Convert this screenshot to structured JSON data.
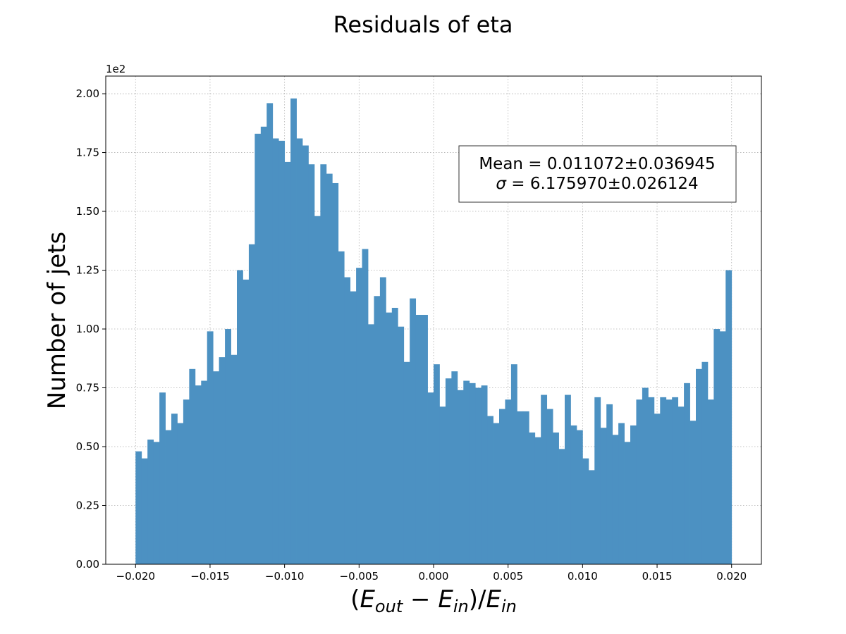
{
  "chart_data": {
    "type": "bar",
    "title": "Residuals of eta",
    "xlabel": "(E_out − E_in)/E_in",
    "ylabel": "Number of jets",
    "y_offset_label": "1e2",
    "xlim": [
      -0.022,
      0.022
    ],
    "ylim": [
      0,
      2.075
    ],
    "x_ticks": [
      -0.02,
      -0.015,
      -0.01,
      -0.005,
      0.0,
      0.005,
      0.01,
      0.015,
      0.02
    ],
    "x_tick_labels": [
      "−0.020",
      "−0.015",
      "−0.010",
      "−0.005",
      "0.000",
      "0.005",
      "0.010",
      "0.015",
      "0.020"
    ],
    "y_ticks": [
      0,
      0.25,
      0.5,
      0.75,
      1.0,
      1.25,
      1.5,
      1.75,
      2.0
    ],
    "y_tick_labels": [
      "0.00",
      "0.25",
      "0.50",
      "0.75",
      "1.00",
      "1.25",
      "1.50",
      "1.75",
      "2.00"
    ],
    "grid": true,
    "bin_range": [
      -0.02,
      0.02
    ],
    "color": "#4c91c2",
    "values": [
      0.48,
      0.45,
      0.53,
      0.52,
      0.73,
      0.57,
      0.64,
      0.6,
      0.7,
      0.83,
      0.76,
      0.78,
      0.99,
      0.82,
      0.88,
      1.0,
      0.89,
      1.25,
      1.21,
      1.36,
      1.83,
      1.86,
      1.96,
      1.81,
      1.8,
      1.71,
      1.98,
      1.81,
      1.78,
      1.7,
      1.48,
      1.7,
      1.66,
      1.62,
      1.33,
      1.22,
      1.16,
      1.26,
      1.34,
      1.02,
      1.14,
      1.22,
      1.07,
      1.09,
      1.01,
      0.86,
      1.13,
      1.06,
      1.06,
      0.73,
      0.85,
      0.67,
      0.79,
      0.82,
      0.74,
      0.78,
      0.77,
      0.75,
      0.76,
      0.63,
      0.6,
      0.66,
      0.7,
      0.85,
      0.65,
      0.65,
      0.56,
      0.54,
      0.72,
      0.66,
      0.56,
      0.49,
      0.72,
      0.59,
      0.57,
      0.45,
      0.4,
      0.71,
      0.58,
      0.68,
      0.55,
      0.6,
      0.52,
      0.59,
      0.7,
      0.75,
      0.71,
      0.64,
      0.71,
      0.7,
      0.71,
      0.67,
      0.77,
      0.61,
      0.83,
      0.86,
      0.7,
      1.0,
      0.99,
      1.25
    ],
    "stats_box": {
      "line1": "Mean = 0.011072±0.036945",
      "line2_symbol": "σ",
      "line2": " = 6.175970±0.026124",
      "placement": "upper-right"
    }
  }
}
